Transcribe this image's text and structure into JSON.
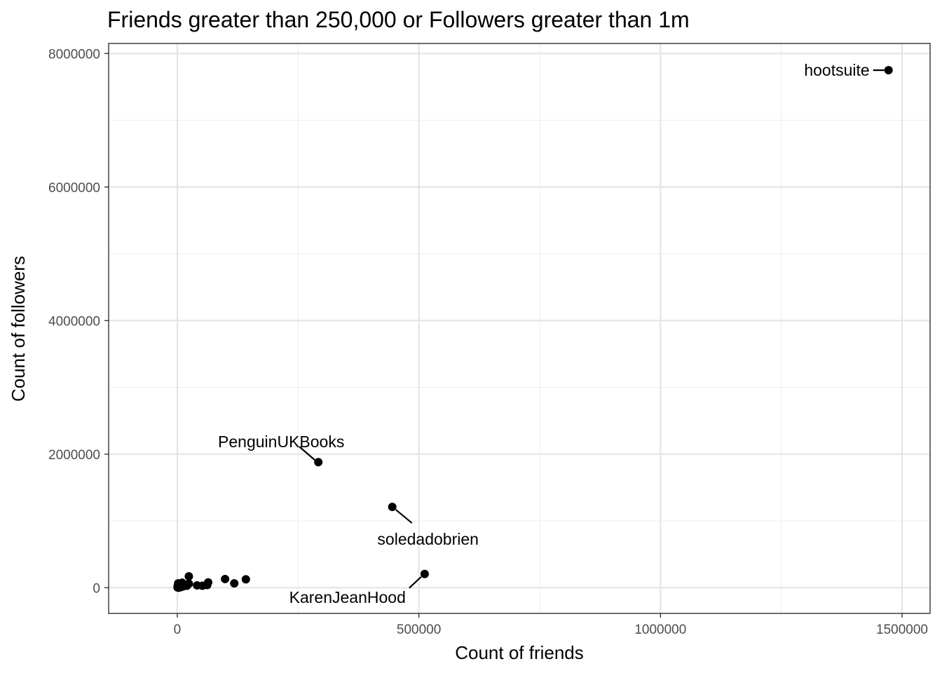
{
  "chart_data": {
    "type": "scatter",
    "title": "Friends greater than 250,000 or Followers greater than 1m",
    "xlabel": "Count of friends",
    "ylabel": "Count of followers",
    "xlim": [
      -142000,
      1558000
    ],
    "ylim": [
      -385000,
      8150000
    ],
    "x_ticks": [
      0,
      500000,
      1000000,
      1500000
    ],
    "x_tick_labels": [
      "0",
      "500000",
      "1000000",
      "1500000"
    ],
    "y_ticks": [
      0,
      2000000,
      4000000,
      6000000,
      8000000
    ],
    "y_tick_labels": [
      "0",
      "2000000",
      "4000000",
      "6000000",
      "8000000"
    ],
    "grid": true,
    "legend": "none",
    "points": [
      {
        "x": 1472000,
        "y": 7750000,
        "label": "hootsuite"
      },
      {
        "x": 292000,
        "y": 1880000,
        "label": "PenguinUKBooks"
      },
      {
        "x": 445000,
        "y": 1210000,
        "label": "soledadobrien"
      },
      {
        "x": 512000,
        "y": 205000,
        "label": "KarenJeanHood"
      },
      {
        "x": 142000,
        "y": 125000
      },
      {
        "x": 99000,
        "y": 130000
      },
      {
        "x": 118000,
        "y": 65000
      },
      {
        "x": 64000,
        "y": 80000
      },
      {
        "x": 62000,
        "y": 40000
      },
      {
        "x": 52000,
        "y": 30000
      },
      {
        "x": 41000,
        "y": 35000
      },
      {
        "x": 24000,
        "y": 170000
      },
      {
        "x": 24000,
        "y": 60000
      },
      {
        "x": 20000,
        "y": 30000
      },
      {
        "x": 16000,
        "y": 45000
      },
      {
        "x": 12000,
        "y": 20000
      },
      {
        "x": 10000,
        "y": 75000
      },
      {
        "x": 8000,
        "y": 10000
      },
      {
        "x": 6000,
        "y": 50000
      },
      {
        "x": 5000,
        "y": 25000
      },
      {
        "x": 3000,
        "y": 0
      },
      {
        "x": 2000,
        "y": 65000
      },
      {
        "x": 1000,
        "y": 30000
      },
      {
        "x": 500,
        "y": 5000
      }
    ]
  }
}
